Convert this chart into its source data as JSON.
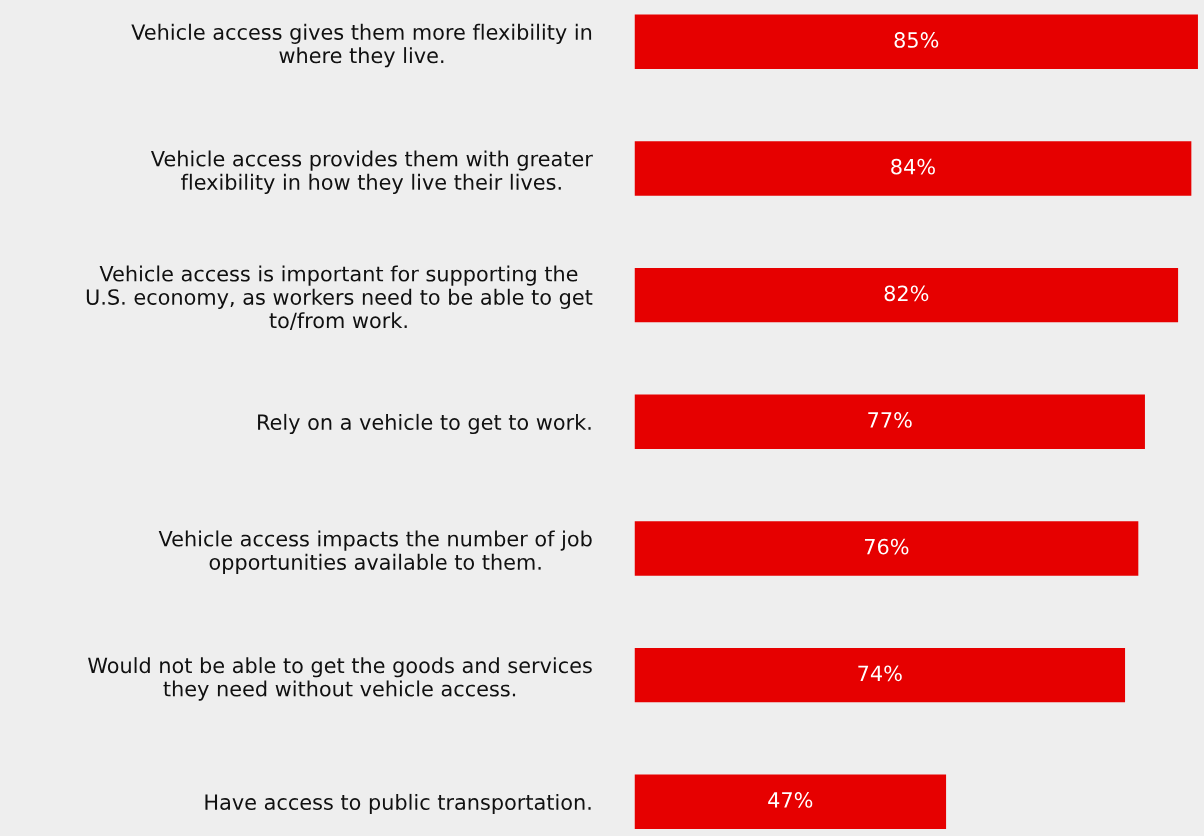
{
  "chart_data": {
    "type": "bar",
    "orientation": "horizontal",
    "categories": [
      "Vehicle access gives them more flexibility in\nwhere they live.",
      "Vehicle access provides them with greater\nflexibility in how they live their lives.",
      "Vehicle access is important for supporting the\nU.S. economy, as workers need to be able to get\nto/from work.",
      "Rely on a vehicle to get to work.",
      "Vehicle access impacts the number of job\nopportunities available to them.",
      "Would not be able to get the goods and services\nthey need without vehicle access.",
      "Have access to public transportation."
    ],
    "values": [
      85,
      84,
      82,
      77,
      76,
      74,
      47
    ],
    "value_labels": [
      "85%",
      "84%",
      "82%",
      "77%",
      "76%",
      "74%",
      "47%"
    ],
    "color": "#e60000",
    "tick_labels": "y",
    "grid": false,
    "legend": false
  }
}
